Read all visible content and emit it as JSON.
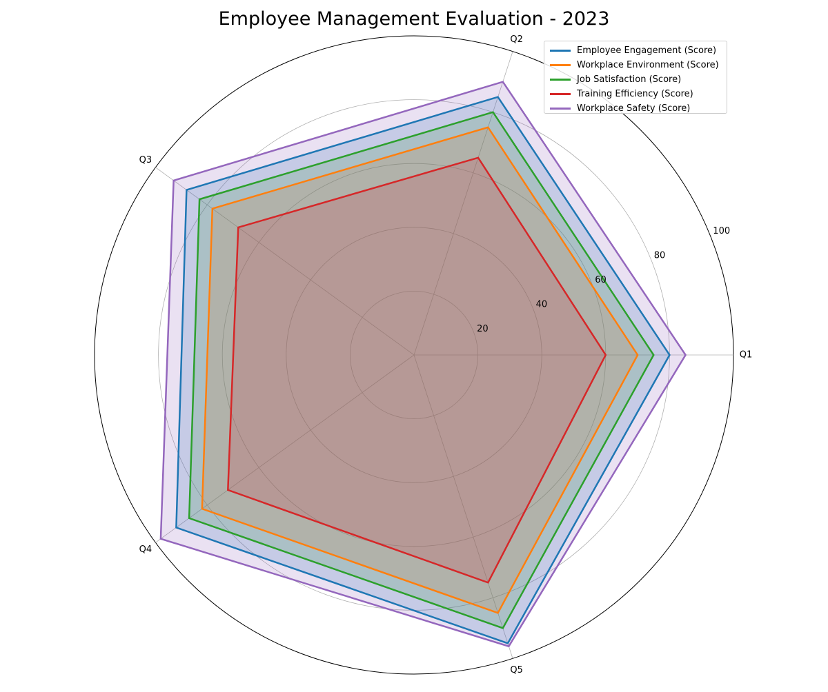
{
  "chart_data": {
    "type": "radar",
    "title": "Employee Management Evaluation - 2023",
    "categories": [
      "Q1",
      "Q2",
      "Q3",
      "Q4",
      "Q5"
    ],
    "radial_ticks": [
      "20",
      "40",
      "60",
      "80",
      "100"
    ],
    "rlim": [
      0,
      100
    ],
    "grid": true,
    "legend_position": "top-right",
    "series": [
      {
        "name": "Employee Engagement (Score)",
        "values": [
          80,
          85,
          88,
          92,
          95
        ],
        "color": "#1f77b4"
      },
      {
        "name": "Workplace Environment (Score)",
        "values": [
          70,
          75,
          78,
          82,
          85
        ],
        "color": "#ff7f0e"
      },
      {
        "name": "Job Satisfaction (Score)",
        "values": [
          75,
          80,
          83,
          87,
          90
        ],
        "color": "#2ca02c"
      },
      {
        "name": "Training Efficiency (Score)",
        "values": [
          60,
          65,
          68,
          72,
          75
        ],
        "color": "#d62728"
      },
      {
        "name": "Workplace Safety (Score)",
        "values": [
          85,
          90,
          93,
          98,
          96
        ],
        "color": "#9467bd"
      }
    ]
  }
}
